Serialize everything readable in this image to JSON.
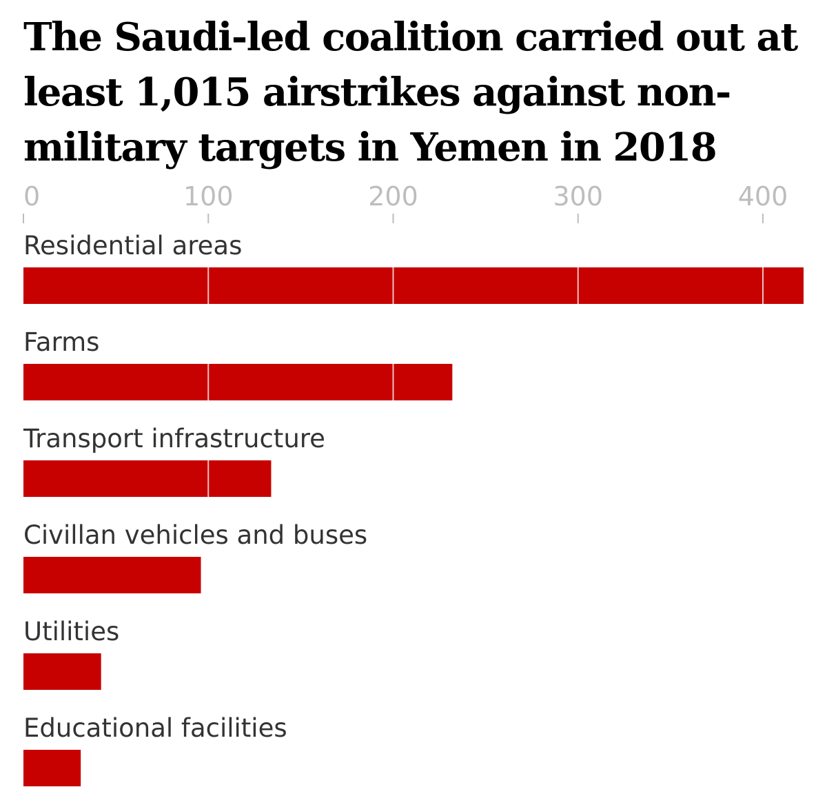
{
  "chart_data": {
    "type": "bar",
    "orientation": "horizontal",
    "title": "The Saudi-led coalition carried out at least 1,015 airstrikes against non-military targets in Yemen in 2018",
    "categories": [
      "Residential areas",
      "Farms",
      "Transport infrastructure",
      "Civillan vehicles and buses",
      "Utilities",
      "Educational facilities"
    ],
    "values": [
      422,
      232,
      134,
      96,
      42,
      31
    ],
    "xticks": [
      "0",
      "100",
      "200",
      "300",
      "400"
    ],
    "xlim": [
      0,
      422
    ],
    "bar_color": "#c70000",
    "gridline_color": "#ffffff",
    "grid": true
  }
}
